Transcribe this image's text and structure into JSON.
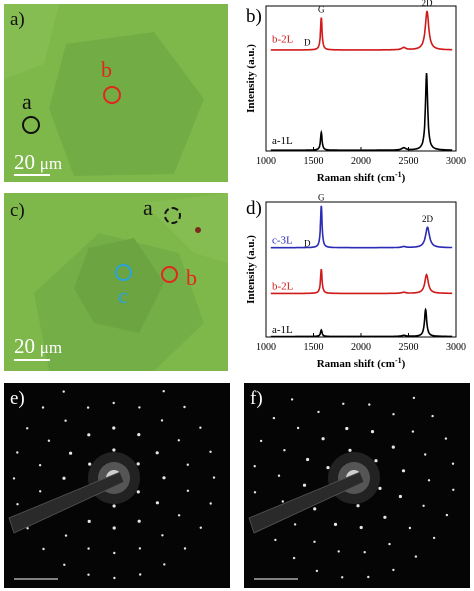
{
  "panels": {
    "a": {
      "label": "a)",
      "scale": {
        "number": "20",
        "unit": "μm"
      },
      "spots": [
        {
          "id": "a",
          "label": "a",
          "color": "#111111"
        },
        {
          "id": "b",
          "label": "b",
          "color": "#e0281e"
        }
      ]
    },
    "c": {
      "label": "c)",
      "scale": {
        "number": "20",
        "unit": "μm"
      },
      "spots": [
        {
          "id": "a",
          "label": "a",
          "color": "#111111"
        },
        {
          "id": "b",
          "label": "b",
          "color": "#e0281e"
        },
        {
          "id": "c",
          "label": "c",
          "color": "#29a3dd"
        }
      ]
    },
    "e": {
      "label": "e)"
    },
    "f": {
      "label": "f)"
    }
  },
  "chart_data": [
    {
      "panel": "b)",
      "type": "line",
      "xlabel": "Raman shift (cm",
      "xlabel_sup": "-1",
      "xlabel_close": ")",
      "ylabel": "Intensity (a.u.)",
      "xlim": [
        1000,
        3000
      ],
      "xticks": [
        1000,
        1500,
        2000,
        2500,
        3000
      ],
      "peak_labels": [
        "G",
        "2D"
      ],
      "series": [
        {
          "name": "a-1L",
          "color": "#000000",
          "offset": 0,
          "peaks": [
            [
              1582,
              0.23,
              10
            ],
            [
              2450,
              0.03,
              25
            ],
            [
              2690,
              1.0,
              14
            ]
          ]
        },
        {
          "name": "b-2L",
          "sub": "D",
          "color": "#d01a1a",
          "offset": 1.3,
          "peaks": [
            [
              1582,
              0.42,
              10
            ],
            [
              2450,
              0.03,
              25
            ],
            [
              2695,
              0.5,
              22
            ]
          ]
        }
      ]
    },
    {
      "panel": "d)",
      "type": "line",
      "xlabel": "Raman shift (cm",
      "xlabel_sup": "-1",
      "xlabel_close": ")",
      "ylabel": "Intensity (a.u.)",
      "xlim": [
        1000,
        3000
      ],
      "xticks": [
        1000,
        1500,
        2000,
        2500,
        3000
      ],
      "peak_labels": [
        "G",
        "2D"
      ],
      "series": [
        {
          "name": "a-1L",
          "color": "#000000",
          "offset": 0,
          "peaks": [
            [
              1582,
              0.12,
              10
            ],
            [
              2450,
              0.02,
              25
            ],
            [
              2680,
              0.5,
              14
            ]
          ]
        },
        {
          "name": "b-2L",
          "color": "#d01a1a",
          "offset": 0.8,
          "peaks": [
            [
              1582,
              0.45,
              10
            ],
            [
              2450,
              0.02,
              25
            ],
            [
              2690,
              0.35,
              22
            ]
          ]
        },
        {
          "name": "c-3L",
          "sub": "D",
          "color": "#2b2bb5",
          "offset": 1.65,
          "peaks": [
            [
              1582,
              0.78,
              10
            ],
            [
              2450,
              0.02,
              25
            ],
            [
              2700,
              0.38,
              25
            ]
          ]
        }
      ]
    }
  ]
}
